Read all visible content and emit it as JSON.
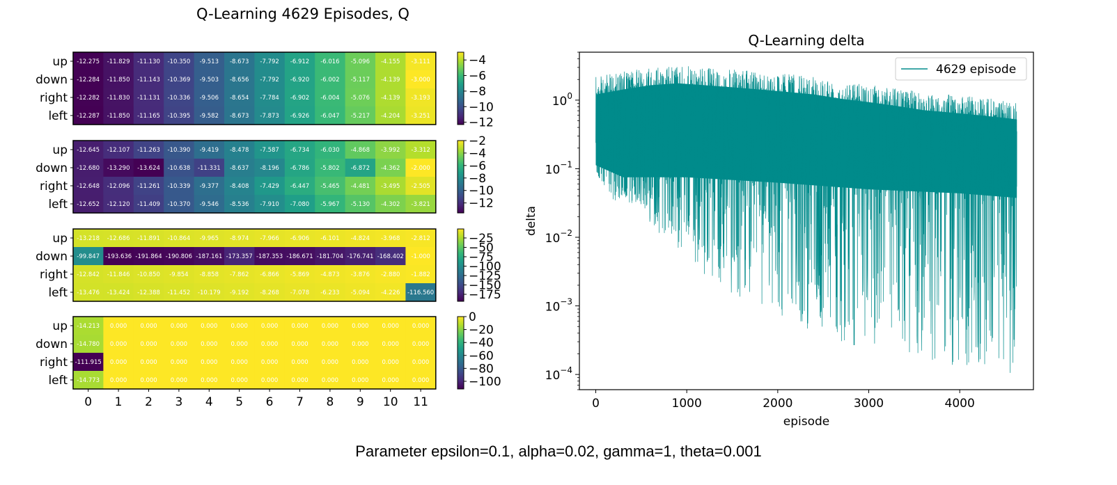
{
  "figure": {
    "left_title": "Q-Learning 4629 Episodes, Q",
    "footer": "Parameter epsilon=0.1, alpha=0.02, gamma=1, theta=0.001"
  },
  "chart_data": [
    {
      "type": "heatmap",
      "title": "Q-Learning 4629 Episodes, Q",
      "panels": [
        {
          "rows": [
            "up",
            "down",
            "right",
            "left"
          ],
          "columns": [
            "0",
            "1",
            "2",
            "3",
            "4",
            "5",
            "6",
            "7",
            "8",
            "9",
            "10",
            "11"
          ],
          "values": [
            [
              "-12.275",
              "-11.829",
              "-11.130",
              "-10.350",
              "-9.513",
              "-8.673",
              "-7.792",
              "-6.912",
              "-6.016",
              "-5.096",
              "-4.155",
              "-3.111"
            ],
            [
              "-12.284",
              "-11.850",
              "-11.143",
              "-10.369",
              "-9.503",
              "-8.656",
              "-7.792",
              "-6.920",
              "-6.002",
              "-5.117",
              "-4.139",
              "-3.000"
            ],
            [
              "-12.282",
              "-11.830",
              "-11.131",
              "-10.336",
              "-9.506",
              "-8.654",
              "-7.784",
              "-6.902",
              "-6.004",
              "-5.076",
              "-4.139",
              "-3.193"
            ],
            [
              "-12.287",
              "-11.850",
              "-11.165",
              "-10.395",
              "-9.582",
              "-8.673",
              "-7.873",
              "-6.926",
              "-6.047",
              "-5.217",
              "-4.204",
              "-3.251"
            ]
          ],
          "colorbar": {
            "min": -12.3,
            "max": -3.0,
            "ticks": [
              "−4",
              "−6",
              "−8",
              "−10",
              "−12"
            ]
          },
          "x_ticks_shown": false
        },
        {
          "rows": [
            "up",
            "down",
            "right",
            "left"
          ],
          "columns": [
            "0",
            "1",
            "2",
            "3",
            "4",
            "5",
            "6",
            "7",
            "8",
            "9",
            "10",
            "11"
          ],
          "values": [
            [
              "-12.645",
              "-12.107",
              "-11.263",
              "-10.390",
              "-9.419",
              "-8.478",
              "-7.587",
              "-6.734",
              "-6.030",
              "-4.868",
              "-3.992",
              "-3.312"
            ],
            [
              "-12.680",
              "-13.290",
              "-13.624",
              "-10.638",
              "-11.331",
              "-8.637",
              "-8.196",
              "-6.786",
              "-5.802",
              "-6.872",
              "-4.362",
              "-2.000"
            ],
            [
              "-12.648",
              "-12.096",
              "-11.261",
              "-10.339",
              "-9.377",
              "-8.408",
              "-7.429",
              "-6.447",
              "-5.465",
              "-4.481",
              "-3.495",
              "-2.505"
            ],
            [
              "-12.652",
              "-12.120",
              "-11.409",
              "-10.370",
              "-9.546",
              "-8.536",
              "-7.910",
              "-7.080",
              "-5.967",
              "-5.130",
              "-4.302",
              "-3.821"
            ]
          ],
          "colorbar": {
            "min": -13.6,
            "max": -2.0,
            "ticks": [
              "−2",
              "−4",
              "−6",
              "−8",
              "−10",
              "−12"
            ]
          },
          "x_ticks_shown": false
        },
        {
          "rows": [
            "up",
            "down",
            "right",
            "left"
          ],
          "columns": [
            "0",
            "1",
            "2",
            "3",
            "4",
            "5",
            "6",
            "7",
            "8",
            "9",
            "10",
            "11"
          ],
          "values": [
            [
              "-13.218",
              "-12.686",
              "-11.891",
              "-10.864",
              "-9.965",
              "-8.974",
              "-7.966",
              "-6.906",
              "-6.101",
              "-4.824",
              "-3.968",
              "-2.812"
            ],
            [
              "-99.847",
              "-193.636",
              "-191.864",
              "-190.806",
              "-187.161",
              "-173.357",
              "-187.353",
              "-186.671",
              "-181.704",
              "-176.741",
              "-168.402",
              "-1.000"
            ],
            [
              "-12.842",
              "-11.846",
              "-10.850",
              "-9.854",
              "-8.858",
              "-7.862",
              "-6.866",
              "-5.869",
              "-4.873",
              "-3.876",
              "-2.880",
              "-1.882"
            ],
            [
              "-13.476",
              "-13.424",
              "-12.388",
              "-11.452",
              "-10.179",
              "-9.192",
              "-8.268",
              "-7.078",
              "-6.233",
              "-5.094",
              "-4.226",
              "-116.560"
            ]
          ],
          "colorbar": {
            "min": -193.6,
            "max": -1.0,
            "ticks": [
              "−25",
              "−50",
              "−75",
              "−100",
              "−125",
              "−150",
              "−175"
            ]
          },
          "x_ticks_shown": false
        },
        {
          "rows": [
            "up",
            "down",
            "right",
            "left"
          ],
          "columns": [
            "0",
            "1",
            "2",
            "3",
            "4",
            "5",
            "6",
            "7",
            "8",
            "9",
            "10",
            "11"
          ],
          "values": [
            [
              "-14.213",
              "0.000",
              "0.000",
              "0.000",
              "0.000",
              "0.000",
              "0.000",
              "0.000",
              "0.000",
              "0.000",
              "0.000",
              "0.000"
            ],
            [
              "-14.780",
              "0.000",
              "0.000",
              "0.000",
              "0.000",
              "0.000",
              "0.000",
              "0.000",
              "0.000",
              "0.000",
              "0.000",
              "0.000"
            ],
            [
              "-111.915",
              "0.000",
              "0.000",
              "0.000",
              "0.000",
              "0.000",
              "0.000",
              "0.000",
              "0.000",
              "0.000",
              "0.000",
              "0.000"
            ],
            [
              "-14.773",
              "0.000",
              "0.000",
              "0.000",
              "0.000",
              "0.000",
              "0.000",
              "0.000",
              "0.000",
              "0.000",
              "0.000",
              "0.000"
            ]
          ],
          "colorbar": {
            "min": -111.9,
            "max": 0.0,
            "ticks": [
              "0",
              "−20",
              "−40",
              "−60",
              "−80",
              "−100"
            ]
          },
          "x_ticks_shown": true
        }
      ]
    },
    {
      "type": "line",
      "title": "Q-Learning delta",
      "xlabel": "episode",
      "ylabel": "delta",
      "yscale": "log",
      "xlim": [
        -180,
        4810
      ],
      "ylim": [
        6e-05,
        5
      ],
      "x_ticks": [
        0,
        1000,
        2000,
        3000,
        4000
      ],
      "y_ticks": [
        {
          "value": 1,
          "base": "10",
          "exp": "0"
        },
        {
          "value": 0.1,
          "base": "10",
          "exp": "−1"
        },
        {
          "value": 0.01,
          "base": "10",
          "exp": "−2"
        },
        {
          "value": 0.001,
          "base": "10",
          "exp": "−3"
        },
        {
          "value": 0.0001,
          "base": "10",
          "exp": "−4"
        }
      ],
      "legend": {
        "position": "top-right",
        "entries": [
          "4629 episode"
        ]
      },
      "color": "#008b8b",
      "series": [
        {
          "name": "4629 episode",
          "envelope_upper": [
            [
              0,
              2.2
            ],
            [
              300,
              2.6
            ],
            [
              600,
              3.0
            ],
            [
              900,
              3.2
            ],
            [
              1200,
              3.0
            ],
            [
              1500,
              2.8
            ],
            [
              1800,
              2.6
            ],
            [
              2100,
              2.4
            ],
            [
              2400,
              2.2
            ],
            [
              2700,
              1.9
            ],
            [
              3000,
              1.7
            ],
            [
              3300,
              1.5
            ],
            [
              3600,
              1.3
            ],
            [
              3900,
              1.2
            ],
            [
              4200,
              1.1
            ],
            [
              4500,
              1.0
            ],
            [
              4629,
              0.95
            ]
          ],
          "envelope_lower": [
            [
              0,
              0.1
            ],
            [
              100,
              0.04
            ],
            [
              300,
              0.03
            ],
            [
              500,
              0.03
            ],
            [
              600,
              0.016
            ],
            [
              800,
              0.008
            ],
            [
              1000,
              0.005
            ],
            [
              1200,
              0.0028
            ],
            [
              1500,
              0.0015
            ],
            [
              1800,
              0.0009
            ],
            [
              2100,
              0.0006
            ],
            [
              2400,
              0.00042
            ],
            [
              2700,
              0.0003
            ],
            [
              3000,
              0.00022
            ],
            [
              3300,
              0.00017
            ],
            [
              3600,
              0.00014
            ],
            [
              3900,
              0.00012
            ],
            [
              4300,
              0.00011
            ],
            [
              4629,
              0.0001
            ]
          ],
          "dense_band_lower": [
            [
              0,
              0.09
            ],
            [
              300,
              0.06
            ],
            [
              1000,
              0.06
            ],
            [
              2000,
              0.05
            ],
            [
              3000,
              0.04
            ],
            [
              4000,
              0.035
            ],
            [
              4629,
              0.03
            ]
          ]
        }
      ]
    }
  ]
}
